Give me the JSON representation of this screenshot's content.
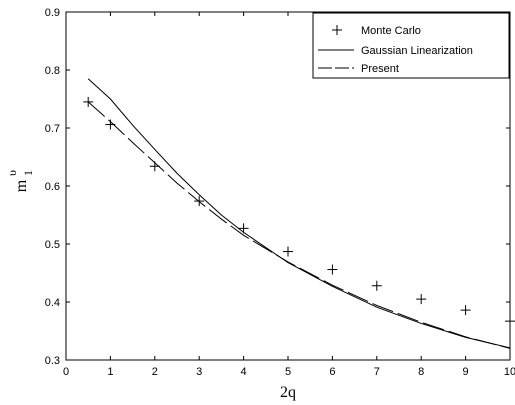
{
  "chart_data": {
    "type": "line",
    "xlabel": "2q",
    "ylabel": {
      "base": "m",
      "subscript": "1",
      "superscript": "υ"
    },
    "xlim": [
      0,
      10
    ],
    "ylim": [
      0.3,
      0.9
    ],
    "x_ticks": [
      0,
      1,
      2,
      3,
      4,
      5,
      6,
      7,
      8,
      9,
      10
    ],
    "y_ticks": [
      0.3,
      0.4,
      0.5,
      0.6,
      0.7,
      0.8,
      0.9
    ],
    "x_tick_labels": [
      "0",
      "1",
      "2",
      "3",
      "4",
      "5",
      "6",
      "7",
      "8",
      "9",
      "10"
    ],
    "y_tick_labels": [
      "0.3",
      "0.4",
      "0.5",
      "0.6",
      "0.7",
      "0.8",
      "0.9"
    ],
    "grid": false,
    "legend_position": "top-right",
    "series": [
      {
        "name": "Monte Carlo",
        "style": "markers-plus",
        "x": [
          0.5,
          1,
          2,
          3,
          4,
          5,
          6,
          7,
          8,
          9,
          10
        ],
        "y": [
          0.745,
          0.706,
          0.634,
          0.574,
          0.527,
          0.487,
          0.456,
          0.428,
          0.405,
          0.386,
          0.367
        ]
      },
      {
        "name": "Gaussian Linearization",
        "style": "solid",
        "x": [
          0.5,
          1,
          1.5,
          2,
          2.5,
          3,
          3.5,
          4,
          5,
          6,
          7,
          8,
          9,
          10
        ],
        "y": [
          0.785,
          0.75,
          0.705,
          0.663,
          0.622,
          0.585,
          0.55,
          0.52,
          0.468,
          0.427,
          0.391,
          0.363,
          0.339,
          0.321
        ]
      },
      {
        "name": "Present",
        "style": "dashed",
        "x": [
          0.5,
          1,
          1.5,
          2,
          2.5,
          3,
          3.5,
          4,
          5,
          6,
          7,
          8,
          9,
          10
        ],
        "y": [
          0.745,
          0.711,
          0.675,
          0.64,
          0.605,
          0.573,
          0.543,
          0.515,
          0.469,
          0.429,
          0.394,
          0.365,
          0.34,
          0.32
        ]
      }
    ]
  }
}
